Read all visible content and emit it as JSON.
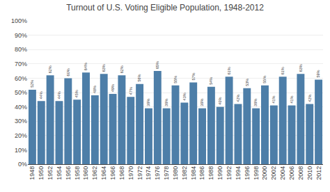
{
  "chart_data": {
    "type": "bar",
    "title": "Turnout of U.S. Voting Eligible Population, 1948-2012",
    "categories": [
      "1948",
      "1950",
      "1952",
      "1954",
      "1956",
      "1958",
      "1960",
      "1962",
      "1964",
      "1966",
      "1968",
      "1970",
      "1972",
      "1974",
      "1976",
      "1978",
      "1980",
      "1982",
      "1984",
      "1986",
      "1988",
      "1990",
      "1992",
      "1994",
      "1996",
      "1998",
      "2000",
      "2002",
      "2004",
      "2006",
      "2008",
      "2010",
      "2012"
    ],
    "values": [
      52,
      44,
      62,
      44,
      60,
      45,
      64,
      48,
      63,
      49,
      62,
      47,
      56,
      39,
      65,
      39,
      55,
      43,
      57,
      39,
      54,
      40,
      61,
      42,
      53,
      39,
      55,
      41,
      61,
      41,
      63,
      42,
      59
    ],
    "value_labels": [
      "52%",
      "44%",
      "62%",
      "44%",
      "60%",
      "45%",
      "64%",
      "48%",
      "63%",
      "49%",
      "62%",
      "47%",
      "56%",
      "39%",
      "65%",
      "39%",
      "55%",
      "43%",
      "57%",
      "39%",
      "54%",
      "40%",
      "61%",
      "42%",
      "53%",
      "39%",
      "55%",
      "41%",
      "61%",
      "41%",
      "63%",
      "42%",
      "59%"
    ],
    "data_labels": true,
    "color": "#4d7ea8",
    "ylim": [
      0,
      100
    ],
    "yticks": [
      {
        "value": 0,
        "label": "0%"
      },
      {
        "value": 10,
        "label": "10%"
      },
      {
        "value": 20,
        "label": "20%"
      },
      {
        "value": 30,
        "label": "30%"
      },
      {
        "value": 40,
        "label": "40%"
      },
      {
        "value": 50,
        "label": "50%"
      },
      {
        "value": 60,
        "label": "60%"
      },
      {
        "value": 70,
        "label": "70%"
      },
      {
        "value": 80,
        "label": "80%"
      },
      {
        "value": 90,
        "label": "90%"
      },
      {
        "value": 100,
        "label": "100%"
      }
    ],
    "grid": true
  }
}
